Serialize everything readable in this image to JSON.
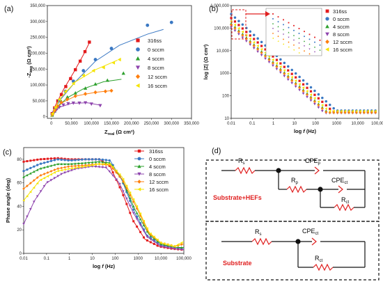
{
  "colors": {
    "316ss": "#e31a1c",
    "0sccm": "#3a78c3",
    "4sccm": "#2ca02c",
    "8sccm": "#8e44ad",
    "12sccm": "#ff7f0e",
    "16sccm": "#f5e400",
    "circuit_red": "#e02020",
    "black": "#111111"
  },
  "chart_data": [
    {
      "panel": "(a)",
      "type": "scatter",
      "xlabel": "Z",
      "xlabel_sub": "real",
      "xlabel_unit": " (Ω cm²)",
      "ylabel": "-Z",
      "ylabel_sub": "img",
      "ylabel_unit": " (Ω cm²)",
      "xlim": [
        -10000,
        350000
      ],
      "ylim": [
        -5000,
        350000
      ],
      "xticks": [
        0,
        50000,
        100000,
        150000,
        200000,
        250000,
        300000,
        350000
      ],
      "xticklabels": [
        "0",
        "50,000",
        "100,000",
        "150,000",
        "200,000",
        "250,000",
        "300,000",
        "350,000"
      ],
      "yticks": [
        0,
        50000,
        100000,
        150000,
        200000,
        250000,
        300000,
        350000
      ],
      "yticklabels": [
        "0",
        "50,000",
        "100,000",
        "150,000",
        "200,000",
        "250,000",
        "300,000",
        "350,000"
      ],
      "legend_position": "right",
      "series": [
        {
          "name": "316ss",
          "marker": "square",
          "points": [
            [
              2000,
              10000
            ],
            [
              8000,
              28000
            ],
            [
              16000,
              50000
            ],
            [
              25000,
              70000
            ],
            [
              36000,
              95000
            ],
            [
              48000,
              120000
            ],
            [
              60000,
              148000
            ],
            [
              72000,
              175000
            ],
            [
              84000,
              205000
            ],
            [
              95000,
              235000
            ]
          ],
          "fit": [
            [
              0,
              0
            ],
            [
              10000,
              35000
            ],
            [
              30000,
              85000
            ],
            [
              55000,
              138000
            ],
            [
              80000,
              195000
            ],
            [
              97000,
              238000
            ]
          ]
        },
        {
          "name": "0 sccm",
          "marker": "circle",
          "points": [
            [
              3000,
              8000
            ],
            [
              10000,
              25000
            ],
            [
              20000,
              52000
            ],
            [
              35000,
              80000
            ],
            [
              55000,
              112000
            ],
            [
              80000,
              145000
            ],
            [
              110000,
              180000
            ],
            [
              150000,
              215000
            ],
            [
              240000,
              288000
            ],
            [
              300000,
              297000
            ]
          ],
          "fit": [
            [
              0,
              0
            ],
            [
              20000,
              50000
            ],
            [
              60000,
              110000
            ],
            [
              110000,
              175000
            ],
            [
              170000,
              225000
            ],
            [
              240000,
              260000
            ],
            [
              280000,
              275000
            ]
          ]
        },
        {
          "name": "4 sccm",
          "marker": "triangle",
          "points": [
            [
              2000,
              5000
            ],
            [
              8000,
              18000
            ],
            [
              15000,
              33000
            ],
            [
              25000,
              48000
            ],
            [
              40000,
              62000
            ],
            [
              60000,
              75000
            ],
            [
              85000,
              90000
            ],
            [
              110000,
              103000
            ],
            [
              140000,
              115000
            ],
            [
              180000,
              137000
            ]
          ],
          "fit": [
            [
              0,
              0
            ],
            [
              15000,
              30000
            ],
            [
              40000,
              60000
            ],
            [
              80000,
              88000
            ],
            [
              130000,
              110000
            ],
            [
              175000,
              118000
            ]
          ]
        },
        {
          "name": "8 sccm",
          "marker": "triangle-down",
          "points": [
            [
              2000,
              5000
            ],
            [
              6000,
              13000
            ],
            [
              12000,
              22000
            ],
            [
              20000,
              30000
            ],
            [
              30000,
              37000
            ],
            [
              42000,
              41000
            ],
            [
              55000,
              43000
            ],
            [
              70000,
              43000
            ],
            [
              85000,
              44000
            ],
            [
              100000,
              40000
            ],
            [
              122000,
              35000
            ]
          ],
          "fit": [
            [
              0,
              0
            ],
            [
              20000,
              30000
            ],
            [
              50000,
              42000
            ],
            [
              90000,
              44000
            ],
            [
              120000,
              37000
            ]
          ]
        },
        {
          "name": "12 sccm",
          "marker": "diamond",
          "points": [
            [
              3000,
              8000
            ],
            [
              8000,
              20000
            ],
            [
              15000,
              33000
            ],
            [
              25000,
              45000
            ],
            [
              40000,
              55000
            ],
            [
              60000,
              65000
            ],
            [
              85000,
              72000
            ],
            [
              110000,
              77000
            ],
            [
              135000,
              80000
            ],
            [
              150000,
              82000
            ]
          ],
          "fit": [
            [
              0,
              0
            ],
            [
              20000,
              40000
            ],
            [
              60000,
              65000
            ],
            [
              110000,
              77000
            ],
            [
              150000,
              82000
            ]
          ]
        },
        {
          "name": "16 sccm",
          "marker": "triangle-left",
          "points": [
            [
              3000,
              10000
            ],
            [
              10000,
              30000
            ],
            [
              20000,
              55000
            ],
            [
              35000,
              80000
            ],
            [
              55000,
              105000
            ],
            [
              80000,
              130000
            ],
            [
              105000,
              145000
            ],
            [
              130000,
              155000
            ],
            [
              155000,
              170000
            ],
            [
              170000,
              180000
            ]
          ],
          "fit": [
            [
              0,
              0
            ],
            [
              20000,
              55000
            ],
            [
              60000,
              110000
            ],
            [
              110000,
              148000
            ],
            [
              165000,
              178000
            ]
          ]
        }
      ]
    },
    {
      "panel": "(b)",
      "type": "line",
      "xlabel": "log",
      "xlabel_f": "f",
      "xlabel_unit": " (Hz)",
      "ylabel": "log |Z| (Ω cm²)",
      "xscale": "log",
      "yscale": "log",
      "xlim": [
        0.01,
        100000
      ],
      "ylim": [
        10,
        1000000
      ],
      "xticks": [
        0.01,
        0.1,
        1,
        10,
        100,
        1000,
        10000,
        100000
      ],
      "xticklabels": [
        "0.01",
        "0.1",
        "1",
        "10",
        "100",
        "1000",
        "10,000",
        "100,000"
      ],
      "yticks": [
        10,
        100,
        1000,
        10000,
        100000,
        1000000
      ],
      "yticklabels": [
        "10",
        "100",
        "1000",
        "10,000",
        "100,000",
        "1,000,000"
      ],
      "legend_position": "top-right",
      "has_inset": true,
      "series": [
        {
          "name": "316ss",
          "marker": "square",
          "lowF": 280000,
          "highF": 20
        },
        {
          "name": "0 sccm",
          "marker": "circle",
          "lowF": 420000,
          "highF": 22
        },
        {
          "name": "4 sccm",
          "marker": "triangle",
          "lowF": 160000,
          "highF": 19
        },
        {
          "name": "8 sccm",
          "marker": "triangle-down",
          "lowF": 110000,
          "highF": 17
        },
        {
          "name": "12 sccm",
          "marker": "diamond",
          "lowF": 140000,
          "highF": 18
        },
        {
          "name": "16 sccm",
          "marker": "triangle-left",
          "lowF": 200000,
          "highF": 21
        }
      ]
    },
    {
      "panel": "(c)",
      "type": "line",
      "xlabel": "log",
      "xlabel_f": "f",
      "xlabel_unit": " (Hz)",
      "ylabel": "Phase angle (deg)",
      "xscale": "log",
      "xlim": [
        0.01,
        100000
      ],
      "ylim": [
        0,
        90
      ],
      "xticks": [
        0.01,
        0.1,
        1,
        10,
        100,
        1000,
        10000,
        100000
      ],
      "xticklabels": [
        "0.01",
        "0.1",
        "1",
        "10",
        "100",
        "1000",
        "10,000",
        "100,000"
      ],
      "yticks": [
        0,
        20,
        40,
        60,
        80
      ],
      "yticklabels": [
        "0",
        "20",
        "40",
        "60",
        "80"
      ],
      "legend_position": "top-right",
      "series": [
        {
          "name": "316ss",
          "marker": "square",
          "curve": [
            [
              0.01,
              78
            ],
            [
              0.05,
              80
            ],
            [
              0.3,
              81
            ],
            [
              1,
              80
            ],
            [
              5,
              80
            ],
            [
              20,
              80
            ],
            [
              60,
              74
            ],
            [
              200,
              52
            ],
            [
              600,
              28
            ],
            [
              2000,
              12
            ],
            [
              8000,
              6
            ],
            [
              30000,
              4
            ],
            [
              100000,
              3
            ]
          ]
        },
        {
          "name": "0 sccm",
          "marker": "circle",
          "curve": [
            [
              0.01,
              70
            ],
            [
              0.05,
              76
            ],
            [
              0.3,
              80
            ],
            [
              1,
              79
            ],
            [
              5,
              80
            ],
            [
              20,
              80
            ],
            [
              60,
              79
            ],
            [
              200,
              62
            ],
            [
              700,
              35
            ],
            [
              2500,
              15
            ],
            [
              10000,
              7
            ],
            [
              40000,
              5
            ],
            [
              100000,
              4
            ]
          ]
        },
        {
          "name": "4 sccm",
          "marker": "triangle",
          "curve": [
            [
              0.01,
              65
            ],
            [
              0.05,
              72
            ],
            [
              0.3,
              76
            ],
            [
              1,
              76
            ],
            [
              5,
              77
            ],
            [
              20,
              78
            ],
            [
              60,
              77
            ],
            [
              200,
              63
            ],
            [
              700,
              38
            ],
            [
              3000,
              16
            ],
            [
              10000,
              8
            ],
            [
              40000,
              5
            ],
            [
              100000,
              5
            ]
          ]
        },
        {
          "name": "8 sccm",
          "marker": "triangle-down",
          "curve": [
            [
              0.01,
              25
            ],
            [
              0.03,
              45
            ],
            [
              0.1,
              60
            ],
            [
              0.5,
              68
            ],
            [
              2,
              72
            ],
            [
              10,
              74
            ],
            [
              40,
              73
            ],
            [
              150,
              60
            ],
            [
              600,
              35
            ],
            [
              2500,
              14
            ],
            [
              10000,
              6
            ],
            [
              40000,
              4
            ],
            [
              100000,
              3
            ]
          ]
        },
        {
          "name": "12 sccm",
          "marker": "diamond",
          "curve": [
            [
              0.01,
              55
            ],
            [
              0.05,
              66
            ],
            [
              0.3,
              72
            ],
            [
              1,
              74
            ],
            [
              5,
              75
            ],
            [
              20,
              76
            ],
            [
              60,
              75
            ],
            [
              200,
              63
            ],
            [
              800,
              40
            ],
            [
              3000,
              17
            ],
            [
              10000,
              9
            ],
            [
              40000,
              6
            ],
            [
              100000,
              8
            ]
          ]
        },
        {
          "name": "16 sccm",
          "marker": "triangle-left",
          "curve": [
            [
              0.01,
              45
            ],
            [
              0.05,
              62
            ],
            [
              0.3,
              70
            ],
            [
              1,
              72
            ],
            [
              5,
              74
            ],
            [
              20,
              76
            ],
            [
              60,
              76
            ],
            [
              200,
              65
            ],
            [
              800,
              42
            ],
            [
              3000,
              18
            ],
            [
              10000,
              9
            ],
            [
              40000,
              6
            ],
            [
              100000,
              10
            ]
          ]
        }
      ]
    }
  ],
  "panel_d": {
    "label": "(d)",
    "top_label": "Substrate+HEFs",
    "bottom_label": "Substrate",
    "rs": "R",
    "rs_sub": "s",
    "rp": "R",
    "rp_sub": "p",
    "rct": "R",
    "rct_sub": "ct",
    "cpe_p": "CPE",
    "cpe_p_sub": "p",
    "cpe_ct": "CPE",
    "cpe_ct_sub": "ct"
  }
}
